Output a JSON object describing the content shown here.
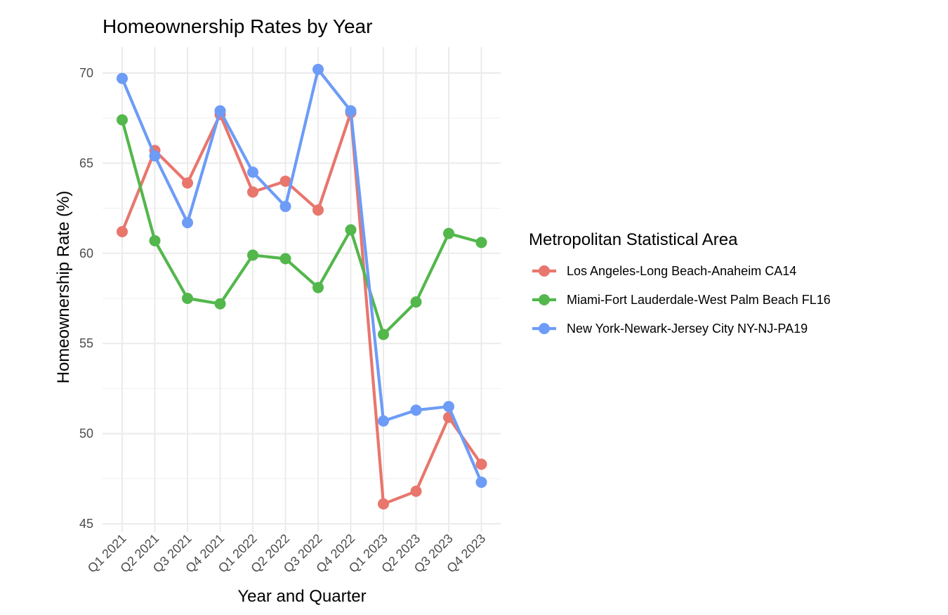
{
  "chart_data": {
    "type": "line",
    "title": "Homeownership Rates by Year",
    "xlabel": "Year and Quarter",
    "ylabel": "Homeownership Rate (%)",
    "categories": [
      "Q1 2021",
      "Q2 2021",
      "Q3 2021",
      "Q4 2021",
      "Q1 2022",
      "Q2 2022",
      "Q3 2022",
      "Q4 2022",
      "Q1 2023",
      "Q2 2023",
      "Q3 2023",
      "Q4 2023"
    ],
    "ylim": [
      45,
      71.3
    ],
    "yticks": [
      45,
      50,
      55,
      60,
      65,
      70
    ],
    "grid": true,
    "legend": {
      "title": "Metropolitan Statistical Area",
      "placement": "right"
    },
    "series": [
      {
        "name": "Los Angeles-Long Beach-Anaheim CA14",
        "color": "#e8766d",
        "values": [
          61.2,
          65.7,
          63.9,
          67.7,
          63.4,
          64.0,
          62.4,
          67.8,
          46.1,
          46.8,
          50.9,
          48.3
        ]
      },
      {
        "name": "Miami-Fort Lauderdale-West Palm Beach FL16",
        "color": "#53b74c",
        "values": [
          67.4,
          60.7,
          57.5,
          57.2,
          59.9,
          59.7,
          58.1,
          61.3,
          55.5,
          57.3,
          61.1,
          60.6
        ]
      },
      {
        "name": "New York-Newark-Jersey City NY-NJ-PA19",
        "color": "#6d9cf7",
        "values": [
          69.7,
          65.4,
          61.7,
          67.9,
          64.5,
          62.6,
          70.2,
          67.9,
          50.7,
          51.3,
          51.5,
          47.3
        ]
      }
    ]
  }
}
